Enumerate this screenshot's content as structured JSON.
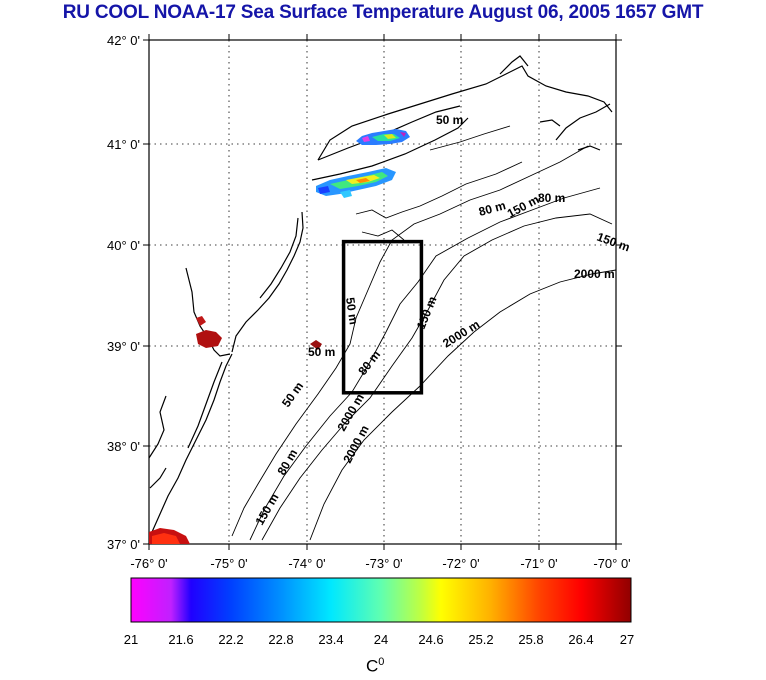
{
  "title": "RU COOL  NOAA-17 Sea Surface Temperature August 06, 2005 1657 GMT",
  "map": {
    "lat_labels": [
      "42° 0'",
      "41° 0'",
      "40° 0'",
      "39° 0'",
      "38° 0'",
      "37° 0'"
    ],
    "lon_labels": [
      "-76° 0'",
      "-75° 0'",
      "-74° 0'",
      "-73° 0'",
      "-72° 0'",
      "-71° 0'",
      "-70° 0'"
    ],
    "lat_range": [
      37,
      42
    ],
    "lon_range": [
      -76,
      -70
    ],
    "study_box": {
      "lon": [
        -73.5,
        -72.5
      ],
      "lat": [
        38.5,
        40.0
      ]
    },
    "contour_labels": [
      "50 m",
      "80 m",
      "150 m",
      "2000 m",
      "2000 m",
      "2000 m",
      "80 m",
      "150 m",
      "50 m",
      "50 m",
      "80 m",
      "150 m",
      "2000 m",
      "50 m",
      "80 m",
      "150 m"
    ],
    "colors": {
      "land": "#ffffff",
      "coast": "#000000",
      "isobath": "#000000",
      "grid": "#000000"
    }
  },
  "colorbar": {
    "min": 21,
    "max": 27,
    "ticks": [
      "21",
      "21.6",
      "22.2",
      "22.8",
      "23.4",
      "24",
      "24.6",
      "25.2",
      "25.8",
      "26.4",
      "27"
    ],
    "unit": "C",
    "unit_sup": "0"
  }
}
